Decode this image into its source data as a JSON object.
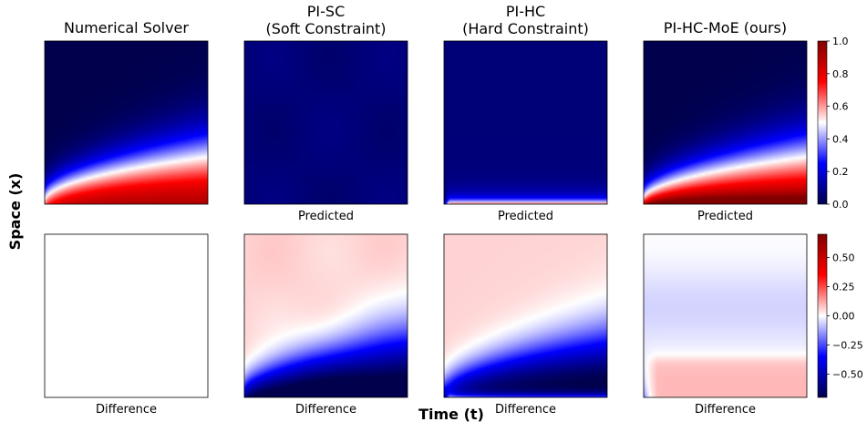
{
  "chart_data": {
    "type": "heatmap",
    "xlabel": "Time (t)",
    "ylabel": "Space (x)",
    "columns": [
      {
        "title": [
          "Numerical Solver"
        ],
        "top_caption": "",
        "bottom_caption": "Difference",
        "field": "numerical",
        "error": "zero"
      },
      {
        "title": [
          "PI-SC",
          "(Soft Constraint)"
        ],
        "top_caption": "Predicted",
        "bottom_caption": "Difference",
        "field": "soft",
        "error": "soft"
      },
      {
        "title": [
          "PI-HC",
          "(Hard Constraint)"
        ],
        "top_caption": "Predicted",
        "bottom_caption": "Difference",
        "field": "hard",
        "error": "hard"
      },
      {
        "title": [
          "PI-HC-MoE (ours)"
        ],
        "top_caption": "Predicted",
        "bottom_caption": "Difference",
        "field": "moe",
        "error": "moe"
      }
    ],
    "colorbars": [
      {
        "range": [
          0.0,
          1.0
        ],
        "ticks": [
          "0.0",
          "0.2",
          "0.4",
          "0.6",
          "0.8",
          "1.0"
        ],
        "tick_values": [
          0.0,
          0.2,
          0.4,
          0.6,
          0.8,
          1.0
        ]
      },
      {
        "range": [
          -0.7,
          0.7
        ],
        "ticks": [
          "−0.50",
          "−0.25",
          "0.00",
          "0.25",
          "0.50"
        ],
        "tick_values": [
          -0.5,
          -0.25,
          0.0,
          0.25,
          0.5
        ]
      }
    ],
    "colormap": "seismic"
  }
}
